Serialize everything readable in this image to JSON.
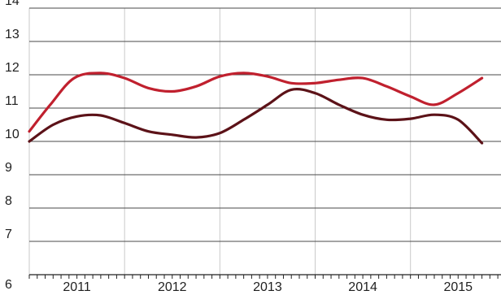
{
  "chart_data": {
    "type": "line",
    "title": "",
    "xlabel": "",
    "ylabel": "",
    "xlim": [
      2010.5,
      2015.45
    ],
    "ylim": [
      6,
      14
    ],
    "grid": "horizontal",
    "legend": "none",
    "x_tick_labels": [
      {
        "value": 2011,
        "label": "2011"
      },
      {
        "value": 2012,
        "label": "2012"
      },
      {
        "value": 2013,
        "label": "2013"
      },
      {
        "value": 2014,
        "label": "2014"
      },
      {
        "value": 2015,
        "label": "2015"
      }
    ],
    "y_tick_labels": [
      {
        "value": 6,
        "label": "6"
      },
      {
        "value": 7,
        "label": "7"
      },
      {
        "value": 8,
        "label": "8"
      },
      {
        "value": 9,
        "label": "9"
      },
      {
        "value": 10,
        "label": "10"
      },
      {
        "value": 11,
        "label": "11"
      },
      {
        "value": 12,
        "label": "12"
      },
      {
        "value": 13,
        "label": "13"
      },
      {
        "value": 14,
        "label": "14"
      }
    ],
    "x_divisions": [
      2010.5,
      2011.5,
      2012.5,
      2013.5,
      2014.5
    ],
    "minor_ticks_per_year": 12,
    "series": [
      {
        "color": "#c0202e",
        "x": [
          2010.5,
          2010.72,
          2010.97,
          2011.25,
          2011.5,
          2011.75,
          2012.0,
          2012.25,
          2012.5,
          2012.75,
          2013.0,
          2013.25,
          2013.5,
          2013.75,
          2014.0,
          2014.25,
          2014.5,
          2014.75,
          2015.0,
          2015.25
        ],
        "values": [
          10.3,
          11.1,
          11.9,
          12.05,
          11.9,
          11.6,
          11.5,
          11.65,
          11.95,
          12.05,
          11.95,
          11.75,
          11.75,
          11.85,
          11.9,
          11.65,
          11.35,
          11.1,
          11.45,
          11.9
        ]
      },
      {
        "color": "#5c1218",
        "x": [
          2010.5,
          2010.75,
          2011.0,
          2011.25,
          2011.5,
          2011.75,
          2012.0,
          2012.25,
          2012.5,
          2012.75,
          2013.0,
          2013.25,
          2013.5,
          2013.75,
          2014.0,
          2014.25,
          2014.5,
          2014.75,
          2015.0,
          2015.25
        ],
        "values": [
          10.0,
          10.5,
          10.75,
          10.78,
          10.55,
          10.3,
          10.2,
          10.12,
          10.25,
          10.65,
          11.1,
          11.55,
          11.45,
          11.1,
          10.8,
          10.65,
          10.68,
          10.8,
          10.65,
          9.95
        ]
      }
    ]
  }
}
